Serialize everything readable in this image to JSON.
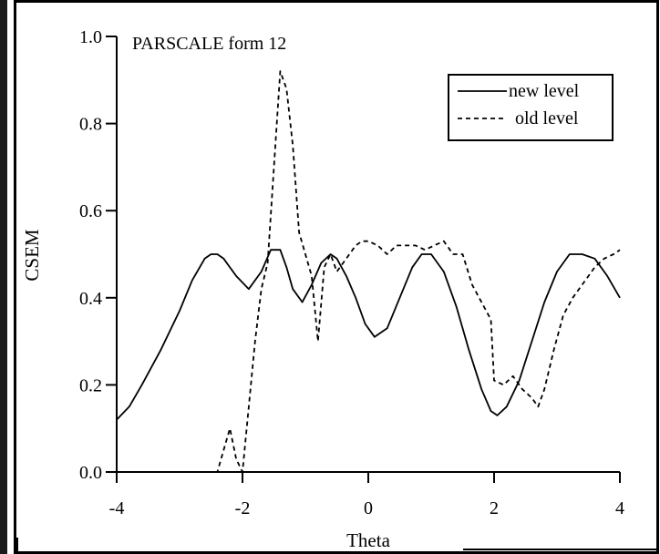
{
  "chart_data": {
    "type": "line",
    "title": "PARSCALE form 12",
    "xlabel": "Theta",
    "ylabel": "CSEM",
    "xlim": [
      -4,
      4
    ],
    "ylim": [
      0,
      1
    ],
    "xticks": [
      -4,
      -2,
      0,
      2,
      4
    ],
    "xtick_labels": [
      "-4",
      "-2",
      "0",
      "2",
      "4"
    ],
    "yticks": [
      0,
      0.2,
      0.4,
      0.6,
      0.8,
      1.0
    ],
    "ytick_labels": [
      "0.0",
      "0.2",
      "0.4",
      "0.6",
      "0.8",
      "1.0"
    ],
    "grid": false,
    "legend_position": "top-right",
    "series": [
      {
        "name": "new level",
        "style": "solid",
        "x": [
          -4.0,
          -3.8,
          -3.6,
          -3.3,
          -3.0,
          -2.8,
          -2.6,
          -2.5,
          -2.4,
          -2.3,
          -2.1,
          -1.9,
          -1.7,
          -1.55,
          -1.4,
          -1.3,
          -1.2,
          -1.05,
          -0.9,
          -0.75,
          -0.6,
          -0.5,
          -0.35,
          -0.2,
          -0.05,
          0.1,
          0.3,
          0.5,
          0.7,
          0.85,
          1.0,
          1.2,
          1.4,
          1.6,
          1.8,
          1.95,
          2.05,
          2.2,
          2.4,
          2.6,
          2.8,
          3.0,
          3.2,
          3.4,
          3.6,
          3.8,
          4.0
        ],
        "y": [
          0.12,
          0.15,
          0.2,
          0.28,
          0.37,
          0.44,
          0.49,
          0.5,
          0.5,
          0.49,
          0.45,
          0.42,
          0.46,
          0.51,
          0.51,
          0.47,
          0.42,
          0.39,
          0.43,
          0.48,
          0.5,
          0.49,
          0.45,
          0.4,
          0.34,
          0.31,
          0.33,
          0.4,
          0.47,
          0.5,
          0.5,
          0.46,
          0.38,
          0.28,
          0.19,
          0.14,
          0.13,
          0.15,
          0.21,
          0.3,
          0.39,
          0.46,
          0.5,
          0.5,
          0.49,
          0.45,
          0.4
        ]
      },
      {
        "name": "old level",
        "style": "dashed",
        "x": [
          -4.0,
          -3.5,
          -3.0,
          -2.6,
          -2.4,
          -2.3,
          -2.2,
          -2.1,
          -2.0,
          -1.9,
          -1.8,
          -1.7,
          -1.6,
          -1.5,
          -1.4,
          -1.3,
          -1.2,
          -1.1,
          -1.0,
          -0.9,
          -0.8,
          -0.7,
          -0.6,
          -0.5,
          -0.4,
          -0.3,
          -0.2,
          -0.1,
          0.0,
          0.15,
          0.3,
          0.45,
          0.6,
          0.75,
          0.9,
          1.05,
          1.2,
          1.35,
          1.5,
          1.65,
          1.8,
          1.95,
          2.0,
          2.15,
          2.3,
          2.45,
          2.6,
          2.7,
          2.8,
          2.95,
          3.1,
          3.25,
          3.45,
          3.6,
          3.75,
          3.9,
          4.0
        ],
        "y": [
          0.0,
          0.0,
          0.0,
          0.0,
          0.0,
          0.05,
          0.1,
          0.03,
          0.0,
          0.15,
          0.3,
          0.42,
          0.48,
          0.7,
          0.92,
          0.88,
          0.75,
          0.55,
          0.5,
          0.45,
          0.3,
          0.47,
          0.5,
          0.46,
          0.48,
          0.5,
          0.52,
          0.53,
          0.53,
          0.52,
          0.5,
          0.52,
          0.52,
          0.52,
          0.51,
          0.52,
          0.53,
          0.5,
          0.5,
          0.43,
          0.39,
          0.35,
          0.21,
          0.2,
          0.22,
          0.19,
          0.17,
          0.15,
          0.19,
          0.28,
          0.36,
          0.4,
          0.44,
          0.47,
          0.49,
          0.5,
          0.51
        ]
      }
    ]
  }
}
